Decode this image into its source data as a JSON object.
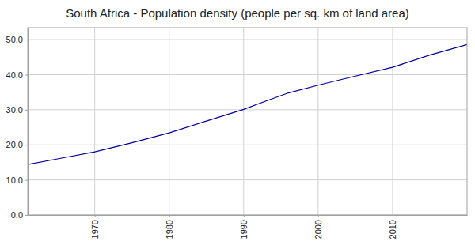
{
  "chart_data": {
    "type": "line",
    "title": "South Africa - Population density (people per sq. km of land area)",
    "x": [
      1961,
      1965,
      1970,
      1975,
      1980,
      1985,
      1990,
      1993,
      1996,
      2000,
      2005,
      2010,
      2015,
      2020
    ],
    "values": [
      14.4,
      16.0,
      18.0,
      20.6,
      23.4,
      26.8,
      30.1,
      32.5,
      34.8,
      37.0,
      39.6,
      42.1,
      45.6,
      48.6
    ],
    "color": "#00009c",
    "xlim": [
      1961,
      2020
    ],
    "xticks": [
      1970,
      1980,
      1990,
      2000,
      2010
    ],
    "ylim": [
      0,
      53.4
    ],
    "yticks": [
      {
        "value": 0,
        "label": "0.0"
      },
      {
        "value": 10,
        "label": "10.0"
      },
      {
        "value": 20,
        "label": "20.0"
      },
      {
        "value": 30,
        "label": "30.0"
      },
      {
        "value": 40,
        "label": "40.0"
      },
      {
        "value": 50,
        "label": "50.0"
      }
    ],
    "grid": true
  }
}
